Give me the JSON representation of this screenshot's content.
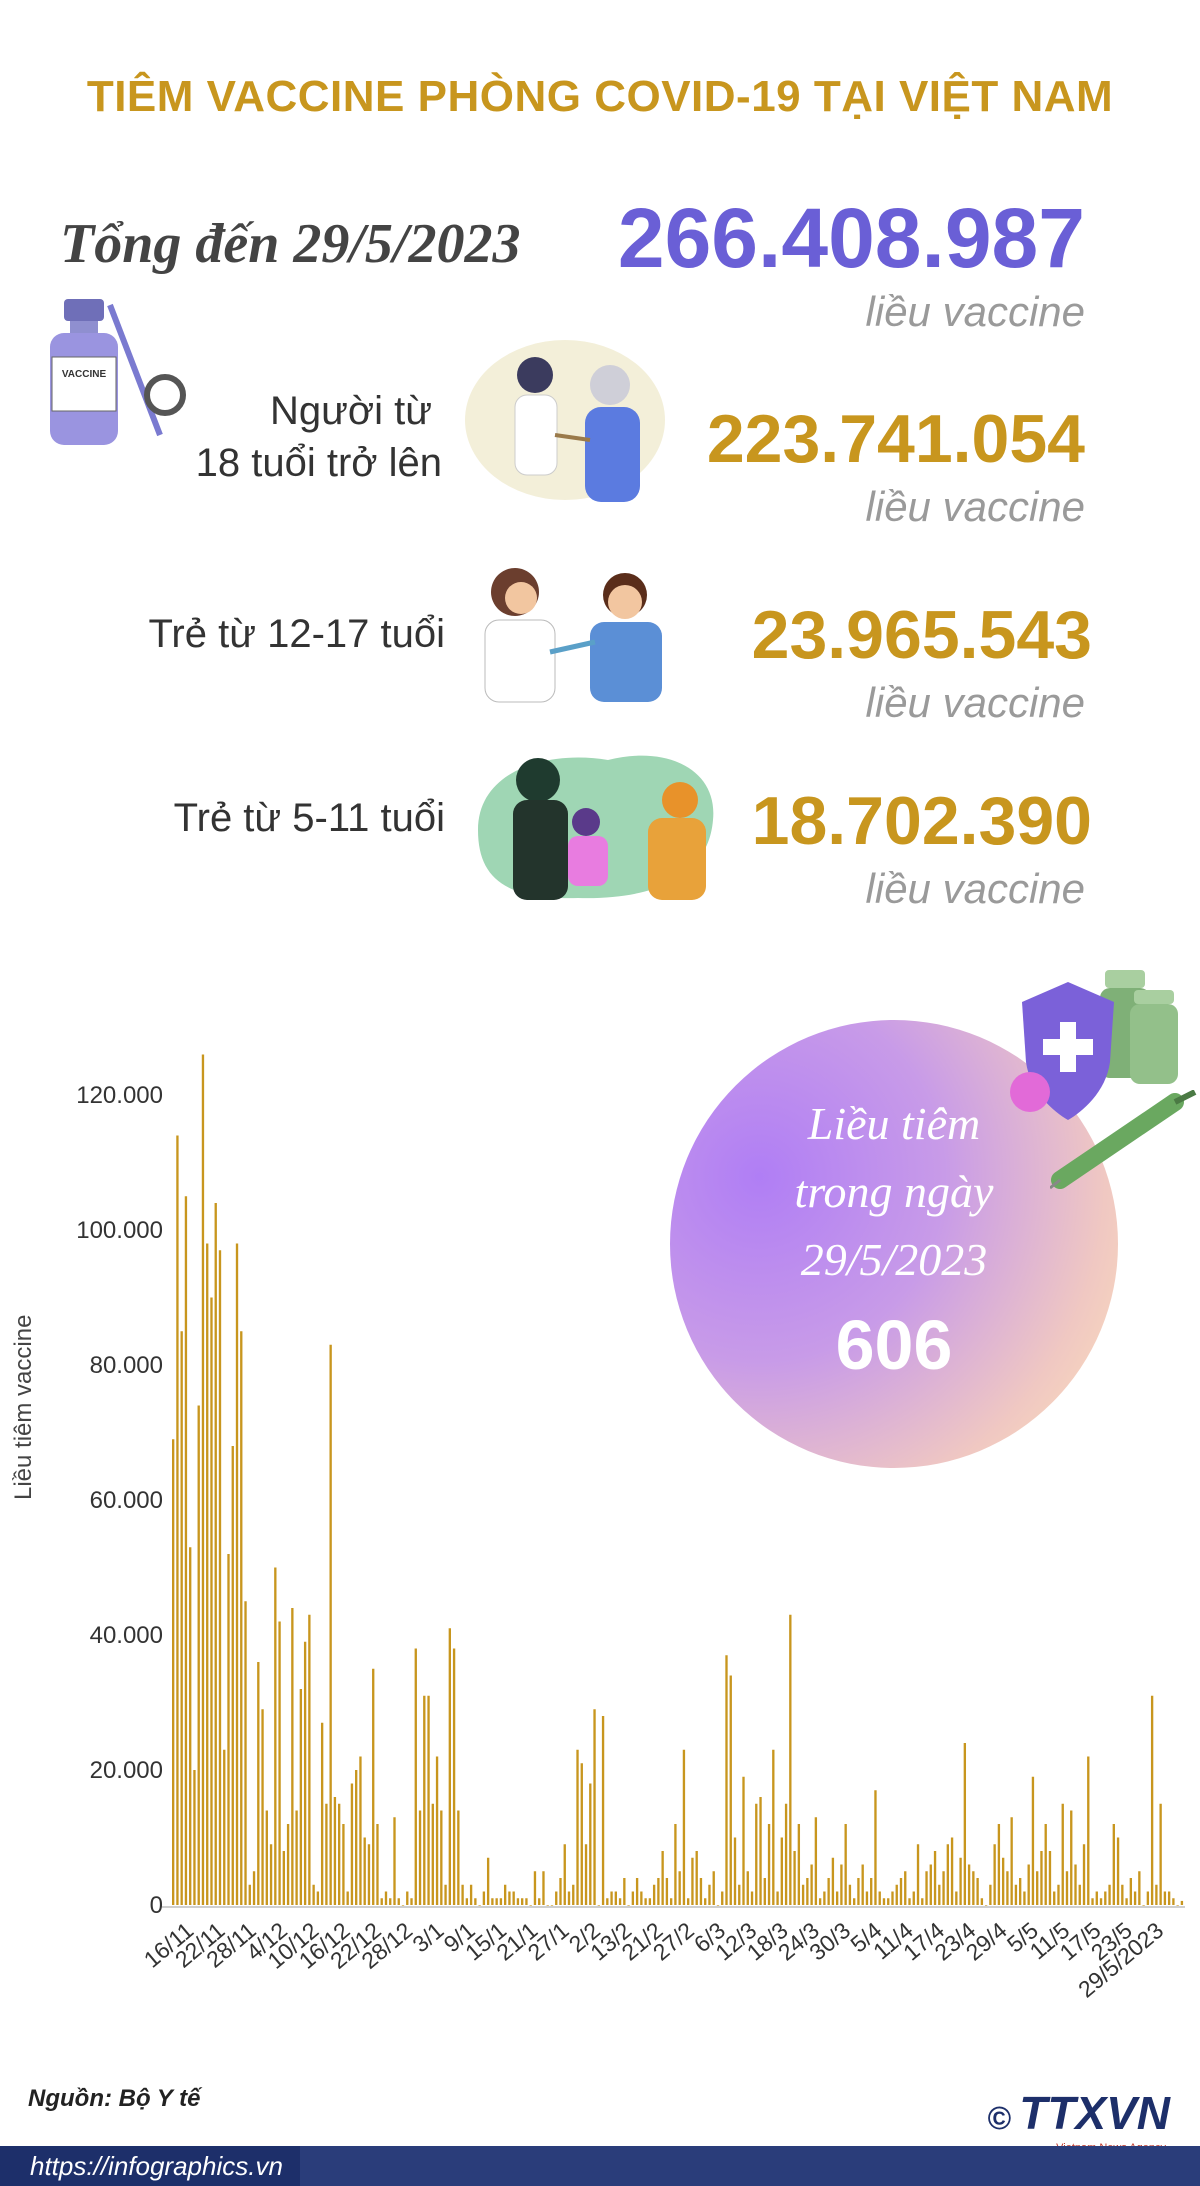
{
  "title": "TIÊM VACCINE PHÒNG COVID-19 TẠI VIỆT NAM",
  "total": {
    "label": "Tổng đến 29/5/2023",
    "value": "266.408.987",
    "unit": "liều vaccine"
  },
  "groups": [
    {
      "label_line1": "Người từ",
      "label_line2": "18 tuổi trở lên",
      "value": "223.741.054",
      "unit": "liều vaccine"
    },
    {
      "label_line1": "Trẻ từ 12-17 tuổi",
      "label_line2": "",
      "value": "23.965.543",
      "unit": "liều vaccine"
    },
    {
      "label_line1": "Trẻ từ 5-11 tuổi",
      "label_line2": "",
      "value": "18.702.390",
      "unit": "liều vaccine"
    }
  ],
  "daily": {
    "line1": "Liều tiêm",
    "line2": "trong ngày",
    "line3": "29/5/2023",
    "value": "606"
  },
  "source": "Nguồn: Bộ Y tế",
  "url": "https://infographics.vn",
  "logo": {
    "text": "TTXVN",
    "sub": "Vietnam News Agency",
    "copyright": "©"
  },
  "icons": [
    "vaccine-vial-icon",
    "adult-vaccination-illustration",
    "teen-vaccination-illustration",
    "child-vaccination-illustration",
    "shield-virus-icon",
    "syringe-icon"
  ],
  "colors": {
    "title": "#c8961e",
    "total": "#6a5fd6",
    "bars": "#c8961e",
    "footer": "#1d2f6a"
  },
  "chart_data": {
    "type": "bar",
    "ylabel": "Liều tiêm vaccine",
    "ylim": [
      0,
      125000
    ],
    "yticks": [
      "0",
      "20.000",
      "40.000",
      "60.000",
      "80.000",
      "100.000",
      "120.000"
    ],
    "x_tick_labels": [
      "16/11",
      "22/11",
      "28/11",
      "4/12",
      "10/12",
      "16/12",
      "22/12",
      "28/12",
      "3/1",
      "9/1",
      "15/1",
      "21/1",
      "27/1",
      "2/2",
      "13/2",
      "21/2",
      "27/2",
      "6/3",
      "12/3",
      "18/3",
      "24/3",
      "30/3",
      "5/4",
      "11/4",
      "17/4",
      "23/4",
      "29/4",
      "5/5",
      "11/5",
      "17/5",
      "23/5",
      "29/5/2023"
    ],
    "values": [
      69000,
      114000,
      85000,
      105000,
      53000,
      20000,
      74000,
      126000,
      98000,
      90000,
      104000,
      97000,
      23000,
      52000,
      68000,
      98000,
      85000,
      45000,
      3000,
      5000,
      36000,
      29000,
      14000,
      9000,
      50000,
      42000,
      8000,
      12000,
      44000,
      14000,
      32000,
      39000,
      43000,
      3000,
      2000,
      27000,
      15000,
      83000,
      16000,
      15000,
      12000,
      2000,
      18000,
      20000,
      22000,
      10000,
      9000,
      35000,
      12000,
      1000,
      2000,
      1000,
      13000,
      1000,
      0,
      2000,
      1000,
      38000,
      14000,
      31000,
      31000,
      15000,
      22000,
      14000,
      3000,
      41000,
      38000,
      14000,
      3000,
      1000,
      3000,
      1000,
      0,
      2000,
      7000,
      1000,
      1000,
      1000,
      3000,
      2000,
      2000,
      1000,
      1000,
      1000,
      0,
      5000,
      1000,
      5000,
      0,
      0,
      2000,
      4000,
      9000,
      2000,
      3000,
      23000,
      21000,
      9000,
      18000,
      29000,
      0,
      28000,
      1000,
      2000,
      2000,
      1000,
      4000,
      0,
      2000,
      4000,
      2000,
      1000,
      1000,
      3000,
      4000,
      8000,
      4000,
      1000,
      12000,
      5000,
      23000,
      1000,
      7000,
      8000,
      4000,
      1000,
      3000,
      5000,
      0,
      2000,
      37000,
      34000,
      10000,
      3000,
      19000,
      5000,
      2000,
      15000,
      16000,
      4000,
      12000,
      23000,
      2000,
      10000,
      15000,
      43000,
      8000,
      12000,
      3000,
      4000,
      6000,
      13000,
      1000,
      2000,
      4000,
      7000,
      2000,
      6000,
      12000,
      3000,
      1000,
      4000,
      6000,
      2000,
      4000,
      17000,
      2000,
      1000,
      1000,
      2000,
      3000,
      4000,
      5000,
      1000,
      2000,
      9000,
      1000,
      5000,
      6000,
      8000,
      3000,
      5000,
      9000,
      10000,
      2000,
      7000,
      24000,
      6000,
      5000,
      4000,
      1000,
      0,
      3000,
      9000,
      12000,
      7000,
      5000,
      13000,
      3000,
      4000,
      2000,
      6000,
      19000,
      5000,
      8000,
      12000,
      8000,
      2000,
      3000,
      15000,
      5000,
      14000,
      6000,
      3000,
      9000,
      22000,
      1000,
      2000,
      1000,
      2000,
      3000,
      12000,
      10000,
      3000,
      1000,
      4000,
      2000,
      5000,
      0,
      2000,
      31000,
      3000,
      15000,
      2000,
      2000,
      1000,
      0,
      606
    ]
  }
}
